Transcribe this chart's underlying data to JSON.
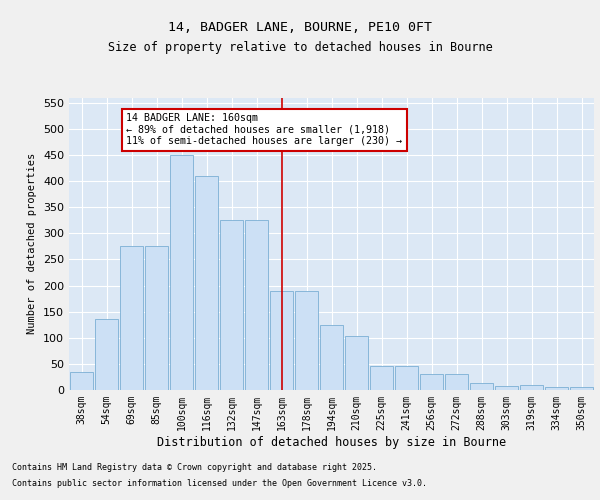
{
  "title1": "14, BADGER LANE, BOURNE, PE10 0FT",
  "title2": "Size of property relative to detached houses in Bourne",
  "xlabel": "Distribution of detached houses by size in Bourne",
  "ylabel": "Number of detached properties",
  "categories": [
    "38sqm",
    "54sqm",
    "69sqm",
    "85sqm",
    "100sqm",
    "116sqm",
    "132sqm",
    "147sqm",
    "163sqm",
    "178sqm",
    "194sqm",
    "210sqm",
    "225sqm",
    "241sqm",
    "256sqm",
    "272sqm",
    "288sqm",
    "303sqm",
    "319sqm",
    "334sqm",
    "350sqm"
  ],
  "values": [
    35,
    135,
    275,
    275,
    450,
    410,
    325,
    325,
    190,
    190,
    125,
    103,
    46,
    46,
    30,
    30,
    14,
    7,
    9,
    5,
    5
  ],
  "bar_color": "#cce0f5",
  "bar_edge_color": "#7bafd4",
  "vline_index": 8,
  "annotation_text_line1": "14 BADGER LANE: 160sqm",
  "annotation_text_line2": "← 89% of detached houses are smaller (1,918)",
  "annotation_text_line3": "11% of semi-detached houses are larger (230) →",
  "annotation_box_facecolor": "#ffffff",
  "annotation_box_edgecolor": "#cc0000",
  "vline_color": "#cc0000",
  "ylim": [
    0,
    560
  ],
  "yticks": [
    0,
    50,
    100,
    150,
    200,
    250,
    300,
    350,
    400,
    450,
    500,
    550
  ],
  "plot_bg_color": "#dce8f5",
  "fig_bg_color": "#f0f0f0",
  "grid_color": "#ffffff",
  "footnote1": "Contains HM Land Registry data © Crown copyright and database right 2025.",
  "footnote2": "Contains public sector information licensed under the Open Government Licence v3.0."
}
